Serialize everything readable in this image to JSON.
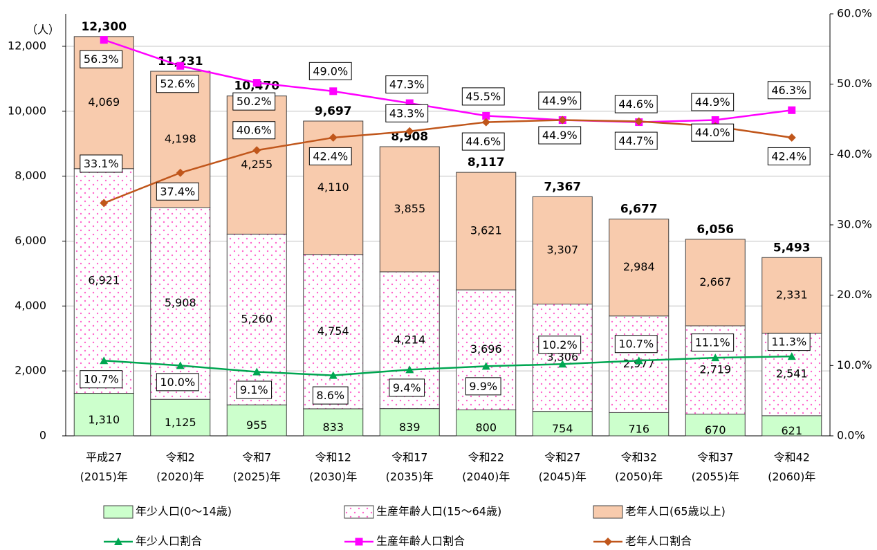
{
  "chart_data": {
    "type": "bar",
    "y_unit": "（人）",
    "categories": [
      [
        "平成27",
        "(2015)年"
      ],
      [
        "令和2",
        "(2020)年"
      ],
      [
        "令和7",
        "(2025)年"
      ],
      [
        "令和12",
        "(2030)年"
      ],
      [
        "令和17",
        "(2035)年"
      ],
      [
        "令和22",
        "(2040)年"
      ],
      [
        "令和27",
        "(2045)年"
      ],
      [
        "令和32",
        "(2050)年"
      ],
      [
        "令和37",
        "(2055)年"
      ],
      [
        "令和42",
        "(2060)年"
      ]
    ],
    "series": [
      {
        "name": "年少人口(0〜14歳)",
        "color": "#ccffcc",
        "values": [
          1310,
          1125,
          955,
          833,
          839,
          800,
          754,
          716,
          670,
          621
        ],
        "value_labels": [
          "1,310",
          "1,125",
          "955",
          "833",
          "839",
          "800",
          "754",
          "716",
          "670",
          "621"
        ]
      },
      {
        "name": "生産年齢人口(15〜64歳)",
        "color": "#ff66cc",
        "pattern": "dots",
        "values": [
          6921,
          5908,
          5260,
          4754,
          4214,
          3696,
          3306,
          2977,
          2719,
          2541
        ],
        "value_labels": [
          "6,921",
          "5,908",
          "5,260",
          "4,754",
          "4,214",
          "3,696",
          "3,306",
          "2,977",
          "2,719",
          "2,541"
        ]
      },
      {
        "name": "老年人口(65歳以上)",
        "color": "#f8cbad",
        "values": [
          4069,
          4198,
          4255,
          4110,
          3855,
          3621,
          3307,
          2984,
          2667,
          2331
        ],
        "value_labels": [
          "4,069",
          "4,198",
          "4,255",
          "4,110",
          "3,855",
          "3,621",
          "3,307",
          "2,984",
          "2,667",
          "2,331"
        ]
      }
    ],
    "totals": {
      "values": [
        12300,
        11231,
        10470,
        9697,
        8908,
        8117,
        7367,
        6677,
        6056,
        5493
      ],
      "value_labels": [
        "12,300",
        "11,231",
        "10,470",
        "9,697",
        "8,908",
        "8,117",
        "7,367",
        "6,677",
        "6,056",
        "5,493"
      ]
    },
    "line_series": [
      {
        "name": "年少人口割合",
        "color": "#00a651",
        "marker": "triangle",
        "axis": "y2",
        "values": [
          10.7,
          10.0,
          9.1,
          8.6,
          9.4,
          9.9,
          10.2,
          10.7,
          11.1,
          11.3
        ],
        "value_labels": [
          "10.7%",
          "10.0%",
          "9.1%",
          "8.6%",
          "9.4%",
          "9.9%",
          "10.2%",
          "10.7%",
          "11.1%",
          "11.3%"
        ]
      },
      {
        "name": "生産年齢人口割合",
        "color": "#ff00ff",
        "marker": "square",
        "axis": "y2",
        "values": [
          56.3,
          52.6,
          50.2,
          49.0,
          47.3,
          45.5,
          44.9,
          44.6,
          44.9,
          46.3
        ],
        "value_labels": [
          "56.3%",
          "52.6%",
          "50.2%",
          "49.0%",
          "47.3%",
          "45.5%",
          "44.9%",
          "44.6%",
          "44.9%",
          "46.3%"
        ]
      },
      {
        "name": "老年人口割合",
        "color": "#c0561b",
        "marker": "diamond",
        "axis": "y2",
        "values": [
          33.1,
          37.4,
          40.6,
          42.4,
          43.3,
          44.6,
          44.9,
          44.7,
          44.0,
          42.4
        ],
        "value_labels": [
          "33.1%",
          "37.4%",
          "40.6%",
          "42.4%",
          "43.3%",
          "44.6%",
          "44.9%",
          "44.7%",
          "44.0%",
          "42.4%"
        ]
      }
    ],
    "ylim": [
      0,
      13000
    ],
    "yticks": [
      0,
      {
        "value": 2000,
        "label": "2,000"
      },
      {
        "value": 4000,
        "label": "4,000"
      },
      {
        "value": 6000,
        "label": "6,000"
      },
      {
        "value": 8000,
        "label": "8,000"
      },
      {
        "value": 10000,
        "label": "10,000"
      },
      {
        "value": 12000,
        "label": "12,000"
      }
    ],
    "y2lim": [
      0,
      60
    ],
    "y2ticks": [
      {
        "value": 0,
        "label": "0.0%"
      },
      {
        "value": 10,
        "label": "10.0%"
      },
      {
        "value": 20,
        "label": "20.0%"
      },
      {
        "value": 30,
        "label": "30.0%"
      },
      {
        "value": 40,
        "label": "40.0%"
      },
      {
        "value": 50,
        "label": "50.0%"
      },
      {
        "value": 60,
        "label": "60.0%"
      }
    ],
    "grid": true
  }
}
